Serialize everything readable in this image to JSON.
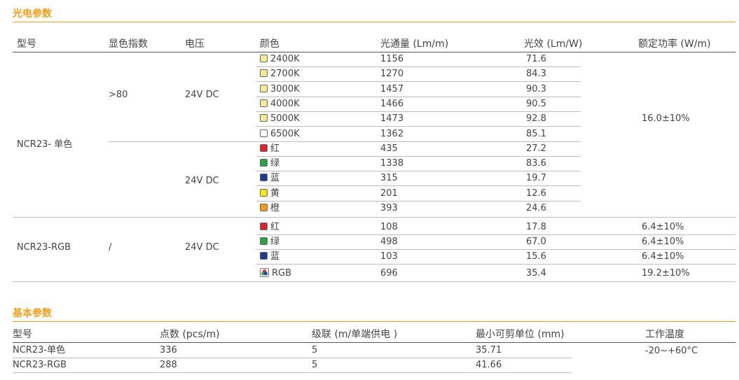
{
  "section1": {
    "title": "光电参数",
    "headers": [
      "型号",
      "显色指数",
      "电压",
      "颜色",
      "光通量 (Lm/m)",
      "光效 (Lm/W)",
      "额定功率 (W/m)"
    ],
    "mono": {
      "model": "NCR23- 单色",
      "cri": ">80",
      "voltage_white": "24V DC",
      "voltage_color": "24V DC",
      "power": "16.0±10%",
      "rows": [
        {
          "color": "2400K",
          "swatch": "#f3ea9a",
          "flux": "1156",
          "eff": "71.6"
        },
        {
          "color": "2700K",
          "swatch": "#f3ea9a",
          "flux": "1270",
          "eff": "84.3"
        },
        {
          "color": "3000K",
          "swatch": "#f3ea9a",
          "flux": "1457",
          "eff": "90.3"
        },
        {
          "color": "4000K",
          "swatch": "#f3ea9a",
          "flux": "1466",
          "eff": "90.5"
        },
        {
          "color": "5000K",
          "swatch": "#f3ea9a",
          "flux": "1473",
          "eff": "92.8"
        },
        {
          "color": "6500K",
          "swatch": "#ffffff",
          "flux": "1362",
          "eff": "85.1"
        },
        {
          "color": "红",
          "swatch": "#d8262c",
          "flux": "435",
          "eff": "27.2"
        },
        {
          "color": "绿",
          "swatch": "#2fa046",
          "flux": "1338",
          "eff": "83.6"
        },
        {
          "color": "蓝",
          "swatch": "#1f3d8f",
          "flux": "315",
          "eff": "19.7"
        },
        {
          "color": "黄",
          "swatch": "#f5e61a",
          "flux": "201",
          "eff": "12.6"
        },
        {
          "color": "橙",
          "swatch": "#f39b1b",
          "flux": "393",
          "eff": "24.6"
        }
      ]
    },
    "rgb": {
      "model": "NCR23-RGB",
      "cri": "/",
      "voltage": "24V DC",
      "rows": [
        {
          "color": "红",
          "swatch": "#d8262c",
          "flux": "108",
          "eff": "17.8",
          "power": "6.4±10%"
        },
        {
          "color": "绿",
          "swatch": "#2fa046",
          "flux": "498",
          "eff": "67.0",
          "power": "6.4±10%"
        },
        {
          "color": "蓝",
          "swatch": "#1f3d8f",
          "flux": "103",
          "eff": "15.6",
          "power": "6.4±10%"
        },
        {
          "color": "RGB",
          "swatch": "rgb-icon",
          "flux": "696",
          "eff": "35.4",
          "power": "19.2±10%"
        }
      ]
    }
  },
  "section2": {
    "title": "基本参数",
    "headers": [
      "型号",
      "点数 (pcs/m)",
      "级联 (m/单端供电 )",
      "最小可剪单位 (mm)",
      "工作温度"
    ],
    "rows": [
      {
        "model": "NCR23-单色",
        "points": "336",
        "cascade": "5",
        "cut": "35.71"
      },
      {
        "model": "NCR23-RGB",
        "points": "288",
        "cascade": "5",
        "cut": "41.66"
      }
    ],
    "temp": "-20~+60°C"
  },
  "colors": {
    "accent": "#f0a020",
    "text": "#444444",
    "rule": "#bdbdbd"
  }
}
